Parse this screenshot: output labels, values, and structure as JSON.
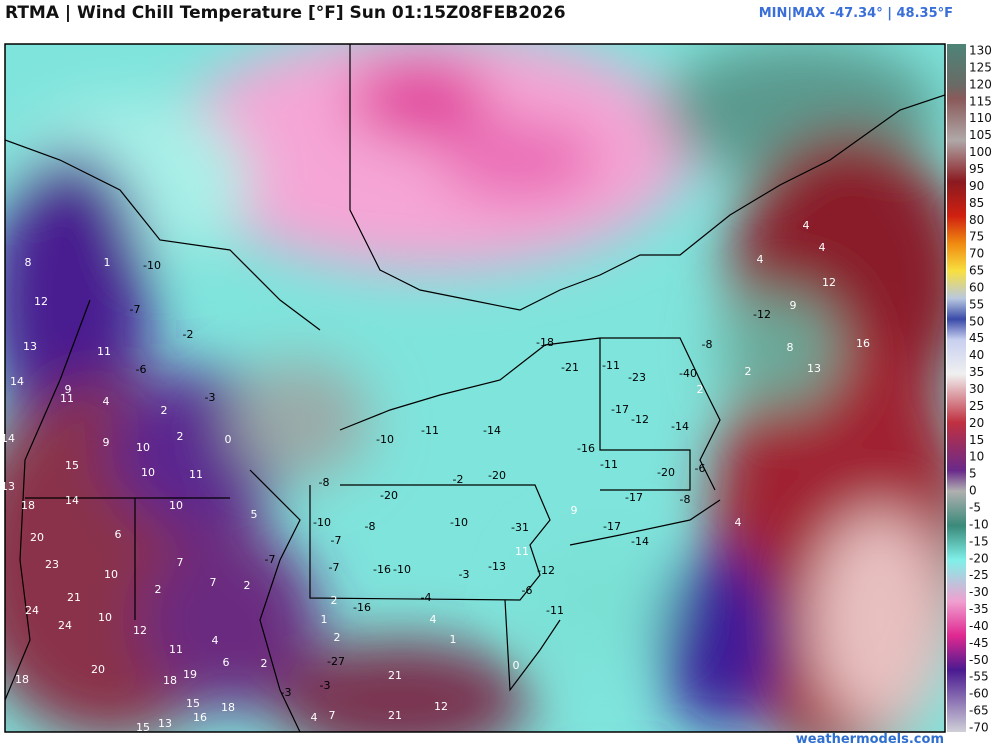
{
  "header": {
    "title": "RTMA | Wind Chill Temperature [°F]  Sun 01:15Z08FEB2026",
    "minmax": "MIN|MAX -47.34°  |  48.35°F"
  },
  "colorbar": {
    "labels": [
      130,
      125,
      120,
      115,
      110,
      105,
      100,
      95,
      90,
      85,
      80,
      75,
      70,
      65,
      60,
      55,
      50,
      45,
      40,
      35,
      30,
      25,
      20,
      15,
      10,
      5,
      0,
      -5,
      -10,
      -15,
      -20,
      -25,
      -30,
      -35,
      -40,
      -45,
      -50,
      -55,
      -60,
      -65,
      -70
    ]
  },
  "stations": {
    "labels": [
      "8",
      "1",
      "-10",
      "12",
      "-7",
      "-2",
      "13",
      "11",
      "-6",
      "14",
      "9",
      "11",
      "4",
      "2",
      "-3",
      "14",
      "9",
      "10",
      "2",
      "0",
      "15",
      "10",
      "11",
      "13",
      "18",
      "14",
      "10",
      "5",
      "20",
      "6",
      "7",
      "23",
      "10",
      "7",
      "-7",
      "2",
      "2",
      "21",
      "24",
      "10",
      "24",
      "12",
      "4",
      "11",
      "6",
      "2",
      "20",
      "19",
      "18",
      "18",
      "15",
      "18",
      "16",
      "13",
      "15",
      "-3",
      "4",
      "7",
      "-3",
      "-27",
      "1",
      "2",
      "-16",
      "2",
      "-4",
      "4",
      "1",
      "0",
      "21",
      "12",
      "21",
      "-16",
      "-10",
      "-7",
      "-7",
      "-10",
      "-8",
      "-8",
      "-20",
      "-2",
      "-20",
      "-10",
      "-3",
      "-13",
      "-31",
      "11",
      "-12",
      "-6",
      "-11",
      "9",
      "-10",
      "-11",
      "-14",
      "-16",
      "-11",
      "-18",
      "-21",
      "-11",
      "-23",
      "-17",
      "-12",
      "-40",
      "2",
      "-14",
      "-20",
      "-6",
      "-17",
      "-8",
      "-17",
      "-14",
      "4",
      "-8",
      "2",
      "-12",
      "9",
      "8",
      "13",
      "12",
      "4",
      "4",
      "4",
      "16"
    ]
  },
  "footer": "weathermodels.com"
}
